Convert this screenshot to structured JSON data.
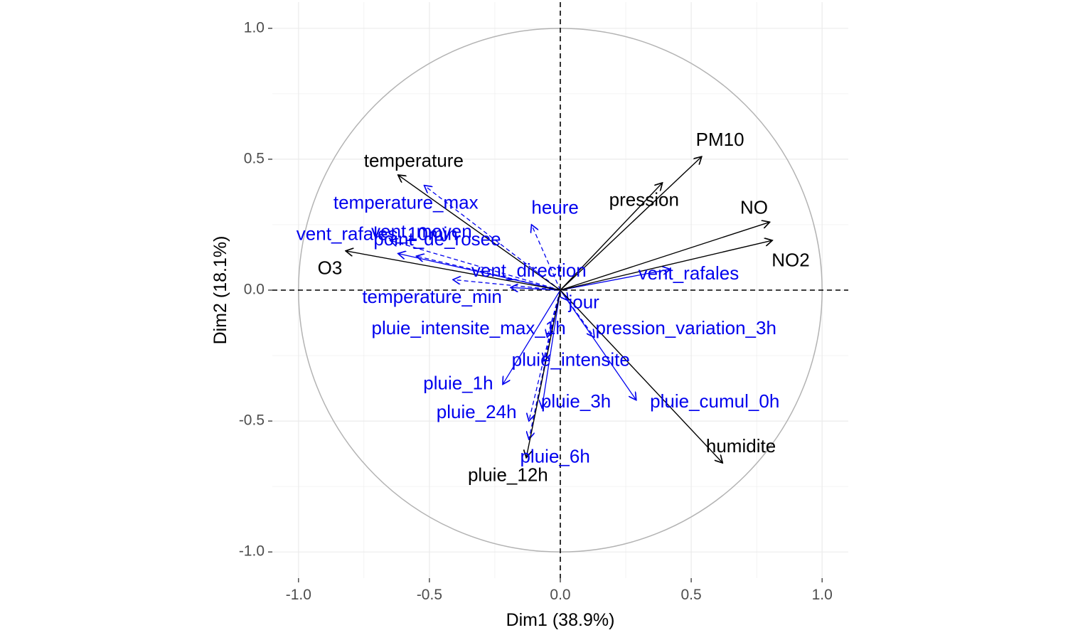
{
  "chart_data": {
    "type": "scatter",
    "subtype": "pca-correlation-circle",
    "title": "",
    "xlabel": "Dim1 (38.9%)",
    "ylabel": "Dim2 (18.1%)",
    "xlim": [
      -1.1,
      1.1
    ],
    "ylim": [
      -1.1,
      1.1
    ],
    "x_ticks": [
      {
        "value": -1.0,
        "label": "-1.0"
      },
      {
        "value": -0.5,
        "label": "-0.5"
      },
      {
        "value": 0.0,
        "label": "0.0"
      },
      {
        "value": 0.5,
        "label": "0.5"
      },
      {
        "value": 1.0,
        "label": "1.0"
      }
    ],
    "y_ticks": [
      {
        "value": 1.0,
        "label": "1.0"
      },
      {
        "value": 0.5,
        "label": "0.5"
      },
      {
        "value": 0.0,
        "label": "0.0"
      },
      {
        "value": -0.5,
        "label": "-0.5"
      },
      {
        "value": -1.0,
        "label": "-1.0"
      }
    ],
    "grid": true,
    "unit_circle": true,
    "colors": {
      "active": "#000000",
      "supplementary": "#0000ee",
      "circle": "#b3b3b3",
      "grid": "#ebebeb"
    },
    "series": [
      {
        "name": "",
        "role": "active",
        "line_style": "solid",
        "points": [
          {
            "label": "temperature",
            "x": -0.62,
            "y": 0.44,
            "label_x": -0.56,
            "label_y": 0.49
          },
          {
            "label": "O3",
            "x": -0.82,
            "y": 0.15,
            "label_x": -0.88,
            "label_y": 0.08
          },
          {
            "label": "PM10",
            "x": 0.54,
            "y": 0.51,
            "label_x": 0.61,
            "label_y": 0.57
          },
          {
            "label": "pression",
            "x": 0.39,
            "y": 0.41,
            "label_x": 0.32,
            "label_y": 0.34
          },
          {
            "label": "NO",
            "x": 0.8,
            "y": 0.26,
            "label_x": 0.74,
            "label_y": 0.31
          },
          {
            "label": "NO2",
            "x": 0.81,
            "y": 0.19,
            "label_x": 0.88,
            "label_y": 0.11
          },
          {
            "label": "humidite",
            "x": 0.62,
            "y": -0.66,
            "label_x": 0.69,
            "label_y": -0.6
          },
          {
            "label": "pluie_12h",
            "x": -0.13,
            "y": -0.64,
            "label_x": -0.2,
            "label_y": -0.71
          }
        ]
      },
      {
        "name": "",
        "role": "supplementary",
        "points": [
          {
            "label": "temperature_max",
            "x": -0.52,
            "y": 0.4,
            "label_x": -0.59,
            "label_y": 0.33,
            "line_style": "dashed"
          },
          {
            "label": "heure",
            "x": -0.11,
            "y": 0.25,
            "label_x": -0.02,
            "label_y": 0.31,
            "line_style": "dashed"
          },
          {
            "label": "vent_rafales_10min",
            "x": -0.62,
            "y": 0.14,
            "label_x": -0.7,
            "label_y": 0.21,
            "line_style": "solid"
          },
          {
            "label": "vent_moyen",
            "x": -0.65,
            "y": 0.19,
            "label_x": -0.53,
            "label_y": 0.22,
            "line_style": "dashed"
          },
          {
            "label": "point_de_rosee",
            "x": -0.55,
            "y": 0.13,
            "label_x": -0.47,
            "label_y": 0.19,
            "line_style": "dashed"
          },
          {
            "label": "vent_direction",
            "x": -0.19,
            "y": 0.01,
            "label_x": -0.12,
            "label_y": 0.07,
            "line_style": "solid"
          },
          {
            "label": "vent_rafales",
            "x": 0.42,
            "y": 0.08,
            "label_x": 0.49,
            "label_y": 0.06,
            "line_style": "solid"
          },
          {
            "label": "temperature_min",
            "x": -0.41,
            "y": 0.04,
            "label_x": -0.49,
            "label_y": -0.03,
            "line_style": "dashed"
          },
          {
            "label": "jour",
            "x": 0.03,
            "y": -0.04,
            "label_x": 0.09,
            "label_y": -0.05,
            "line_style": "dashed"
          },
          {
            "label": "pluie_intensite_max_1h",
            "x": -0.05,
            "y": -0.18,
            "label_x": -0.35,
            "label_y": -0.15,
            "line_style": "dashed"
          },
          {
            "label": "pression_variation_3h",
            "x": 0.13,
            "y": -0.18,
            "label_x": 0.48,
            "label_y": -0.15,
            "line_style": "dashed"
          },
          {
            "label": "pluie_intensite",
            "x": -0.06,
            "y": -0.27,
            "label_x": 0.04,
            "label_y": -0.27,
            "line_style": "dashed"
          },
          {
            "label": "pluie_1h",
            "x": -0.22,
            "y": -0.36,
            "label_x": -0.39,
            "label_y": -0.36,
            "line_style": "solid"
          },
          {
            "label": "pluie_3h",
            "x": -0.07,
            "y": -0.45,
            "label_x": 0.06,
            "label_y": -0.43,
            "line_style": "solid"
          },
          {
            "label": "pluie_cumul_0h",
            "x": 0.29,
            "y": -0.42,
            "label_x": 0.59,
            "label_y": -0.43,
            "line_style": "solid"
          },
          {
            "label": "pluie_24h",
            "x": -0.12,
            "y": -0.5,
            "label_x": -0.32,
            "label_y": -0.47,
            "line_style": "dashed"
          },
          {
            "label": "pluie_6h",
            "x": -0.12,
            "y": -0.57,
            "label_x": -0.02,
            "label_y": -0.64,
            "line_style": "dashed"
          }
        ]
      }
    ]
  }
}
